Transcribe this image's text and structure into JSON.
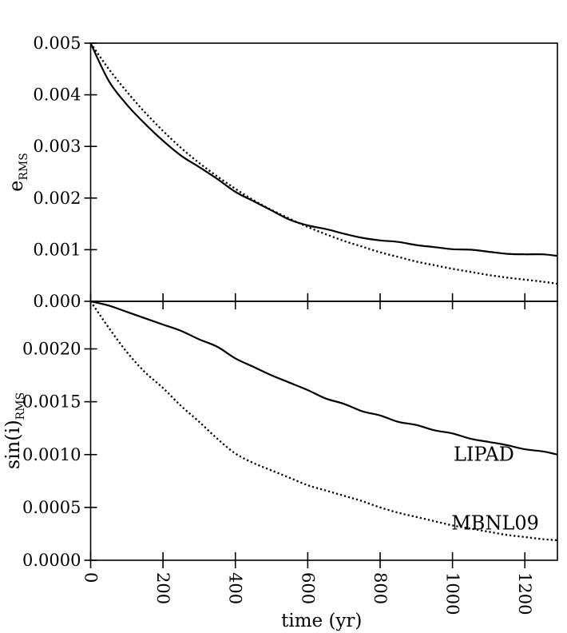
{
  "figure": {
    "background": "#ffffff",
    "ink_color": "#000000",
    "xlabel": "time (yr)"
  },
  "chart_data": [
    {
      "type": "line",
      "panel": "top",
      "ylabel_base": "e",
      "ylabel_sub": "RMS",
      "ylim": [
        0,
        0.005
      ],
      "xlim": [
        0,
        1290
      ],
      "grid": false,
      "yticks": [
        {
          "v": 0.005,
          "label": "0.005"
        },
        {
          "v": 0.004,
          "label": "0.004"
        },
        {
          "v": 0.003,
          "label": "0.003"
        },
        {
          "v": 0.002,
          "label": "0.002"
        },
        {
          "v": 0.001,
          "label": "0.001"
        },
        {
          "v": 0.0,
          "label": "0.000"
        }
      ],
      "xticks": [
        {
          "v": 0,
          "label": "0"
        },
        {
          "v": 200,
          "label": "200"
        },
        {
          "v": 400,
          "label": "400"
        },
        {
          "v": 600,
          "label": "600"
        },
        {
          "v": 800,
          "label": "800"
        },
        {
          "v": 1000,
          "label": "1000"
        },
        {
          "v": 1200,
          "label": "1200"
        }
      ],
      "show_x_tick_labels": false,
      "series": [
        {
          "name": "LIPAD",
          "style": "solid",
          "x": [
            0,
            50,
            100,
            150,
            200,
            250,
            300,
            350,
            400,
            450,
            500,
            550,
            600,
            650,
            700,
            750,
            800,
            850,
            900,
            950,
            1000,
            1050,
            1100,
            1150,
            1200,
            1250,
            1290
          ],
          "y": [
            0.005,
            0.00427,
            0.00381,
            0.00344,
            0.00311,
            0.00282,
            0.0026,
            0.00237,
            0.00212,
            0.00194,
            0.00176,
            0.00158,
            0.00147,
            0.0014,
            0.00131,
            0.00123,
            0.00118,
            0.00115,
            0.00109,
            0.00105,
            0.00101,
            0.001,
            0.00096,
            0.00092,
            0.00091,
            0.00091,
            0.00088
          ]
        },
        {
          "name": "MBNL09",
          "style": "dotted",
          "x": [
            0,
            50,
            100,
            150,
            200,
            250,
            300,
            350,
            400,
            450,
            500,
            550,
            600,
            650,
            700,
            750,
            800,
            850,
            900,
            950,
            1000,
            1050,
            1100,
            1150,
            1200,
            1250,
            1290
          ],
          "y": [
            0.005,
            0.0045,
            0.00406,
            0.00366,
            0.0033,
            0.00297,
            0.00268,
            0.00242,
            0.00218,
            0.00196,
            0.00177,
            0.0016,
            0.00144,
            0.0013,
            0.00117,
            0.00106,
            0.00095,
            0.00086,
            0.00077,
            0.0007,
            0.00063,
            0.00057,
            0.00051,
            0.00046,
            0.00042,
            0.00038,
            0.00034
          ]
        }
      ],
      "annotations": []
    },
    {
      "type": "line",
      "panel": "bottom",
      "ylabel_base": "sin(i)",
      "ylabel_sub": "RMS",
      "ylim": [
        0,
        0.00245
      ],
      "xlim": [
        0,
        1290
      ],
      "grid": false,
      "yticks": [
        {
          "v": 0.002,
          "label": "0.0020"
        },
        {
          "v": 0.0015,
          "label": "0.0015"
        },
        {
          "v": 0.001,
          "label": "0.0010"
        },
        {
          "v": 0.0005,
          "label": "0.0005"
        },
        {
          "v": 0.0,
          "label": "0.0000"
        }
      ],
      "xticks": [
        {
          "v": 0,
          "label": "0"
        },
        {
          "v": 200,
          "label": "200"
        },
        {
          "v": 400,
          "label": "400"
        },
        {
          "v": 600,
          "label": "600"
        },
        {
          "v": 800,
          "label": "800"
        },
        {
          "v": 1000,
          "label": "1000"
        },
        {
          "v": 1200,
          "label": "1200"
        }
      ],
      "show_x_tick_labels": true,
      "xlabel": "time (yr)",
      "series": [
        {
          "name": "LIPAD",
          "style": "solid",
          "x": [
            0,
            50,
            100,
            150,
            200,
            250,
            300,
            350,
            400,
            450,
            500,
            550,
            600,
            650,
            700,
            750,
            800,
            850,
            900,
            950,
            1000,
            1050,
            1100,
            1150,
            1200,
            1250,
            1290
          ],
          "y": [
            0.00245,
            0.00241,
            0.00235,
            0.00229,
            0.00223,
            0.00217,
            0.00209,
            0.00202,
            0.00191,
            0.00183,
            0.00175,
            0.00168,
            0.00161,
            0.00153,
            0.00148,
            0.00141,
            0.00137,
            0.00131,
            0.00128,
            0.00123,
            0.0012,
            0.00115,
            0.00112,
            0.00109,
            0.00105,
            0.00103,
            0.001
          ]
        },
        {
          "name": "MBNL09",
          "style": "dotted",
          "x": [
            0,
            50,
            100,
            150,
            200,
            250,
            300,
            350,
            400,
            450,
            500,
            550,
            600,
            650,
            700,
            750,
            800,
            850,
            900,
            950,
            1000,
            1050,
            1100,
            1150,
            1200,
            1250,
            1290
          ],
          "y": [
            0.00245,
            0.0022,
            0.00197,
            0.00178,
            0.00163,
            0.00146,
            0.00131,
            0.00115,
            0.00101,
            0.00092,
            0.00085,
            0.00078,
            0.00071,
            0.00066,
            0.00061,
            0.00056,
            0.0005,
            0.00045,
            0.00041,
            0.00037,
            0.00033,
            0.0003,
            0.00027,
            0.00024,
            0.00022,
            0.0002,
            0.00019
          ]
        }
      ],
      "annotations": [
        {
          "text": "LIPAD",
          "x": 1003,
          "y": 0.00094
        },
        {
          "text": "MBNL09",
          "x": 997,
          "y": 0.00029
        }
      ]
    }
  ]
}
